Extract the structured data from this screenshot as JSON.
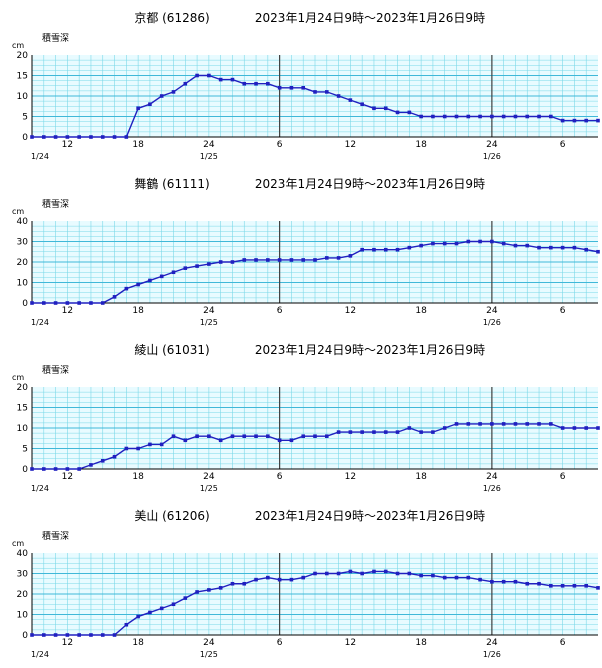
{
  "chart_data": [
    {
      "type": "line",
      "title": "京都 (61286)",
      "period": "2023年1月24日9時〜2023年1月26日9時",
      "ylabel": "積雪深",
      "unit": "cm",
      "ylim": [
        0,
        20
      ],
      "yticks": [
        0,
        5,
        10,
        15,
        20
      ],
      "xticks": [
        "12",
        "18",
        "24",
        "6",
        "12",
        "18",
        "24",
        "6"
      ],
      "date_labels": [
        "1/24",
        "1/25",
        "1/26"
      ],
      "color": "#2020c0",
      "x_hours": [
        0,
        1,
        2,
        3,
        4,
        5,
        6,
        7,
        8,
        9,
        10,
        11,
        12,
        13,
        14,
        15,
        16,
        17,
        18,
        19,
        20,
        21,
        22,
        23,
        24,
        25,
        26,
        27,
        28,
        29,
        30,
        31,
        32,
        33,
        34,
        35,
        36,
        37,
        38,
        39,
        40,
        41,
        42,
        43,
        44,
        45,
        46,
        47,
        48
      ],
      "values": [
        0,
        0,
        0,
        0,
        0,
        0,
        0,
        0,
        0,
        7,
        8,
        10,
        11,
        13,
        15,
        15,
        14,
        14,
        13,
        13,
        13,
        12,
        12,
        12,
        11,
        11,
        10,
        9,
        8,
        7,
        7,
        6,
        6,
        5,
        5,
        5,
        5,
        5,
        5,
        5,
        5,
        5,
        5,
        5,
        5,
        4,
        4,
        4,
        4
      ]
    },
    {
      "type": "line",
      "title": "舞鶴 (61111)",
      "period": "2023年1月24日9時〜2023年1月26日9時",
      "ylabel": "積雪深",
      "unit": "cm",
      "ylim": [
        0,
        40
      ],
      "yticks": [
        0,
        10,
        20,
        30,
        40
      ],
      "xticks": [
        "12",
        "18",
        "24",
        "6",
        "12",
        "18",
        "24",
        "6"
      ],
      "date_labels": [
        "1/24",
        "1/25",
        "1/26"
      ],
      "color": "#2020c0",
      "x_hours": [
        0,
        1,
        2,
        3,
        4,
        5,
        6,
        7,
        8,
        9,
        10,
        11,
        12,
        13,
        14,
        15,
        16,
        17,
        18,
        19,
        20,
        21,
        22,
        23,
        24,
        25,
        26,
        27,
        28,
        29,
        30,
        31,
        32,
        33,
        34,
        35,
        36,
        37,
        38,
        39,
        40,
        41,
        42,
        43,
        44,
        45,
        46,
        47,
        48
      ],
      "values": [
        0,
        0,
        0,
        0,
        0,
        0,
        0,
        3,
        7,
        9,
        11,
        13,
        15,
        17,
        18,
        19,
        20,
        20,
        21,
        21,
        21,
        21,
        21,
        21,
        21,
        22,
        22,
        23,
        26,
        26,
        26,
        26,
        27,
        28,
        29,
        29,
        29,
        30,
        30,
        30,
        29,
        28,
        28,
        27,
        27,
        27,
        27,
        26,
        25
      ]
    },
    {
      "type": "line",
      "title": "綾山 (61031)",
      "period": "2023年1月24日9時〜2023年1月26日9時",
      "ylabel": "積雪深",
      "unit": "cm",
      "ylim": [
        0,
        20
      ],
      "yticks": [
        0,
        5,
        10,
        15,
        20
      ],
      "xticks": [
        "12",
        "18",
        "24",
        "6",
        "12",
        "18",
        "24",
        "6"
      ],
      "date_labels": [
        "1/24",
        "1/25",
        "1/26"
      ],
      "color": "#2020c0",
      "x_hours": [
        0,
        1,
        2,
        3,
        4,
        5,
        6,
        7,
        8,
        9,
        10,
        11,
        12,
        13,
        14,
        15,
        16,
        17,
        18,
        19,
        20,
        21,
        22,
        23,
        24,
        25,
        26,
        27,
        28,
        29,
        30,
        31,
        32,
        33,
        34,
        35,
        36,
        37,
        38,
        39,
        40,
        41,
        42,
        43,
        44,
        45,
        46,
        47,
        48
      ],
      "values": [
        0,
        0,
        0,
        0,
        0,
        1,
        2,
        3,
        5,
        5,
        6,
        6,
        8,
        7,
        8,
        8,
        7,
        8,
        8,
        8,
        8,
        7,
        7,
        8,
        8,
        8,
        9,
        9,
        9,
        9,
        9,
        9,
        10,
        9,
        9,
        10,
        11,
        11,
        11,
        11,
        11,
        11,
        11,
        11,
        11,
        10,
        10,
        10,
        10
      ]
    },
    {
      "type": "line",
      "title": "美山 (61206)",
      "period": "2023年1月24日9時〜2023年1月26日9時",
      "ylabel": "積雪深",
      "unit": "cm",
      "ylim": [
        0,
        40
      ],
      "yticks": [
        0,
        10,
        20,
        30,
        40
      ],
      "xticks": [
        "12",
        "18",
        "24",
        "6",
        "12",
        "18",
        "24",
        "6"
      ],
      "date_labels": [
        "1/24",
        "1/25",
        "1/26"
      ],
      "color": "#2020c0",
      "x_hours": [
        0,
        1,
        2,
        3,
        4,
        5,
        6,
        7,
        8,
        9,
        10,
        11,
        12,
        13,
        14,
        15,
        16,
        17,
        18,
        19,
        20,
        21,
        22,
        23,
        24,
        25,
        26,
        27,
        28,
        29,
        30,
        31,
        32,
        33,
        34,
        35,
        36,
        37,
        38,
        39,
        40,
        41,
        42,
        43,
        44,
        45,
        46,
        47,
        48
      ],
      "values": [
        0,
        0,
        0,
        0,
        0,
        0,
        0,
        0,
        5,
        9,
        11,
        13,
        15,
        18,
        21,
        22,
        23,
        25,
        25,
        27,
        28,
        27,
        27,
        28,
        30,
        30,
        30,
        31,
        30,
        31,
        31,
        30,
        30,
        29,
        29,
        28,
        28,
        28,
        27,
        26,
        26,
        26,
        25,
        25,
        24,
        24,
        24,
        24,
        23
      ]
    }
  ]
}
